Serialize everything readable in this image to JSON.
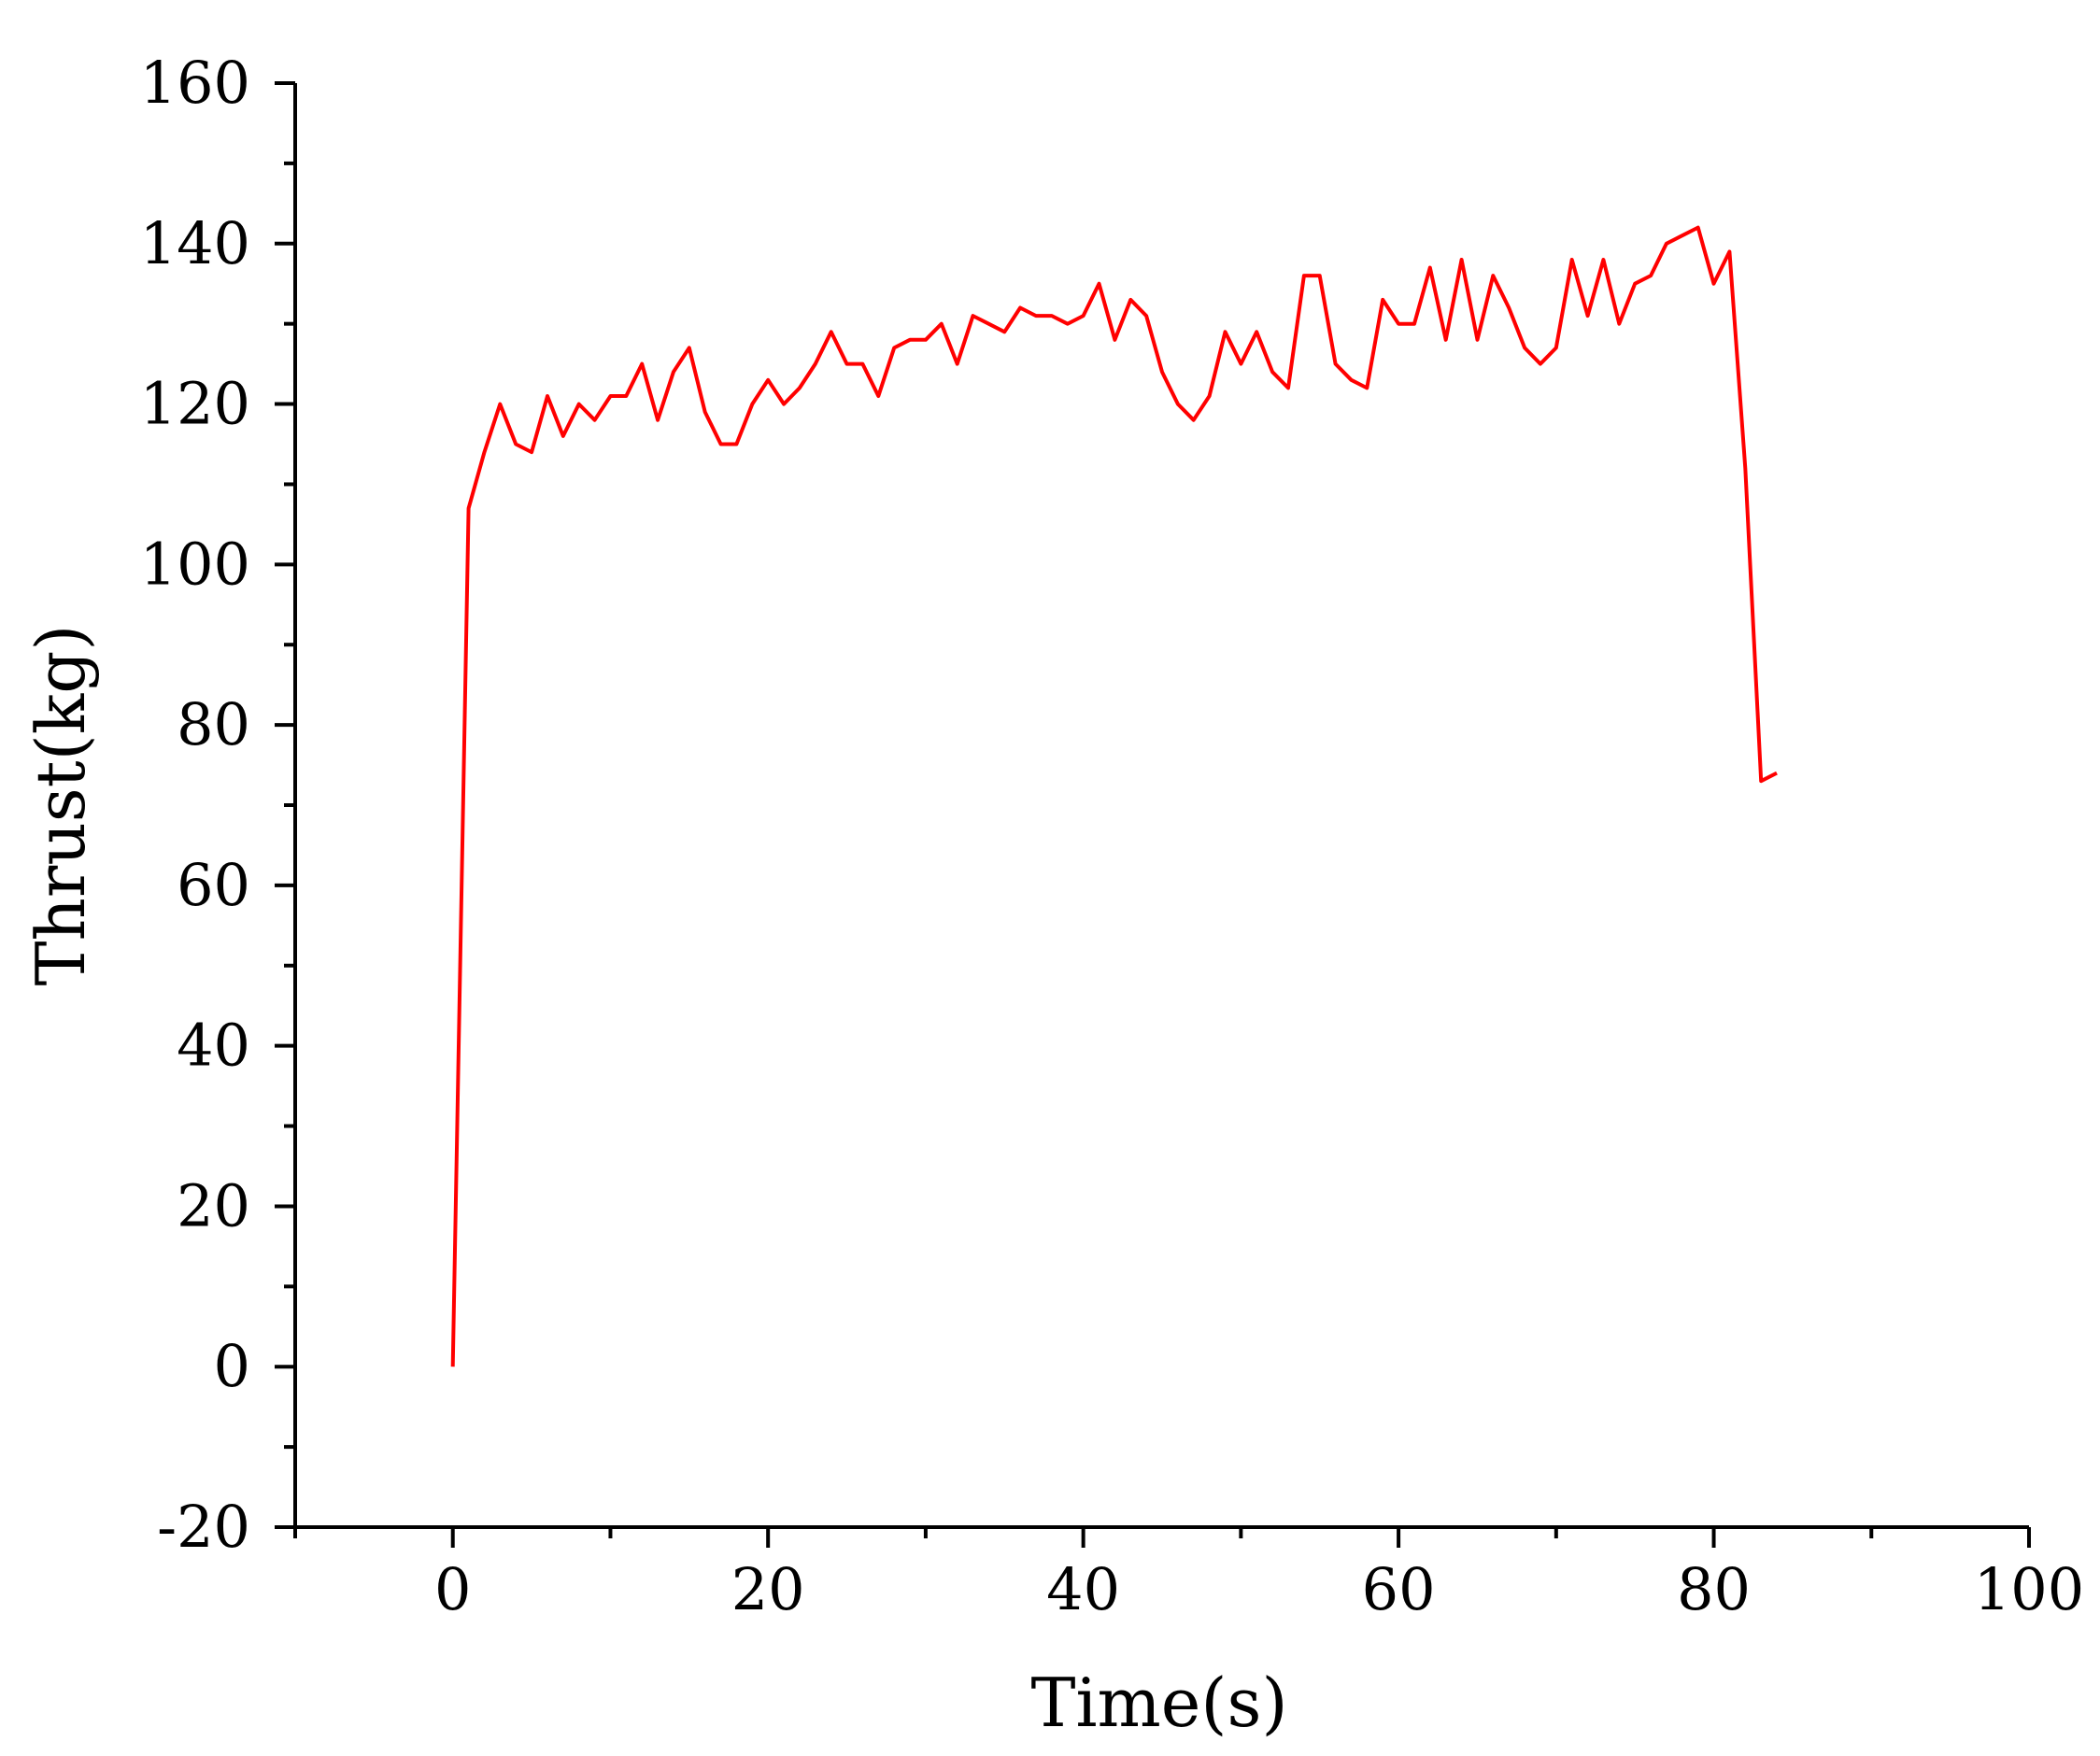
{
  "chart_data": {
    "type": "line",
    "title": "",
    "xlabel": "Time(s)",
    "ylabel": "Thrust(kg)",
    "xlim": [
      -10,
      100
    ],
    "ylim": [
      -20,
      160
    ],
    "x_ticks": [
      0,
      20,
      40,
      60,
      80,
      100
    ],
    "x_tick_labels": [
      "0",
      "20",
      "40",
      "60",
      "80",
      "100"
    ],
    "x_minor_ticks": [
      -10,
      10,
      30,
      50,
      70,
      90
    ],
    "y_ticks": [
      -20,
      0,
      20,
      40,
      60,
      80,
      100,
      120,
      140,
      160
    ],
    "y_tick_labels": [
      "-20",
      "0",
      "20",
      "40",
      "60",
      "80",
      "100",
      "120",
      "140",
      "160"
    ],
    "y_minor_ticks": [
      -10,
      10,
      30,
      50,
      70,
      90,
      110,
      130,
      150
    ],
    "grid": false,
    "legend": "none",
    "series": [
      {
        "color": "#ff0000",
        "x": [
          0,
          1,
          2,
          3,
          4,
          5,
          6,
          7,
          8,
          9,
          10,
          11,
          12,
          13,
          14,
          15,
          16,
          17,
          18,
          19,
          20,
          21,
          22,
          23,
          24,
          25,
          26,
          27,
          28,
          29,
          30,
          31,
          32,
          33,
          34,
          35,
          36,
          37,
          38,
          39,
          40,
          41,
          42,
          43,
          44,
          45,
          46,
          47,
          48,
          49,
          50,
          51,
          52,
          53,
          54,
          55,
          56,
          57,
          58,
          59,
          60,
          61,
          62,
          63,
          64,
          65,
          66,
          67,
          68,
          69,
          70,
          71,
          72,
          73,
          74,
          75,
          76,
          77,
          78,
          79,
          80,
          81,
          82,
          83,
          84
        ],
        "y": [
          0,
          107,
          114,
          120,
          115,
          114,
          121,
          116,
          120,
          118,
          121,
          121,
          125,
          118,
          124,
          127,
          119,
          115,
          115,
          120,
          123,
          120,
          122,
          125,
          129,
          125,
          125,
          121,
          127,
          128,
          128,
          130,
          125,
          131,
          130,
          129,
          132,
          131,
          131,
          130,
          131,
          135,
          128,
          133,
          131,
          124,
          120,
          118,
          121,
          129,
          125,
          129,
          124,
          122,
          136,
          136,
          125,
          123,
          122,
          133,
          130,
          130,
          137,
          128,
          138,
          128,
          136,
          132,
          127,
          125,
          127,
          138,
          131,
          138,
          130,
          135,
          136,
          140,
          141,
          142,
          135,
          139,
          112,
          73,
          74
        ]
      }
    ]
  }
}
